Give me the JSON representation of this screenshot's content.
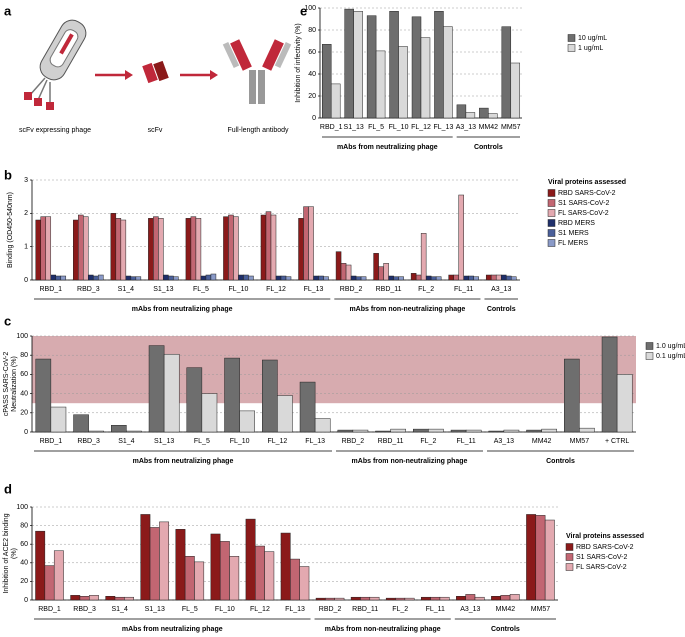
{
  "chart_data": [
    {
      "type": "diagram",
      "panel_label": "a",
      "labels": [
        "scFv expressing phage",
        "scFv",
        "Full-length antibody"
      ]
    },
    {
      "type": "bar",
      "panel_label": "e",
      "y_label": "Inhibition of infectivity (%)",
      "categories": [
        "RBD_1",
        "S1_13",
        "FL_5",
        "FL_10",
        "FL_12",
        "FL_13",
        "A3_13",
        "MM42",
        "MM57"
      ],
      "series": [
        {
          "name": "10 ug/mL",
          "color": "#6e6e6e",
          "values": [
            67,
            99,
            93,
            97,
            92,
            97,
            12,
            9,
            83
          ]
        },
        {
          "name": "1 ug/mL",
          "color": "#d9d9d9",
          "values": [
            31,
            97,
            61,
            65,
            73,
            83,
            5,
            4,
            50
          ]
        }
      ],
      "groups": [
        {
          "label": "mAbs from neutralizing phage",
          "count": 6
        },
        {
          "label": "Controls",
          "count": 3
        }
      ],
      "ylim": [
        0,
        100
      ],
      "yticks": [
        0,
        20,
        40,
        60,
        80,
        100
      ],
      "grid": true
    },
    {
      "type": "bar",
      "panel_label": "b",
      "y_label": "Binding (OD450-540nm)",
      "categories": [
        "RBD_1",
        "RBD_3",
        "S1_4",
        "S1_13",
        "FL_5",
        "FL_10",
        "FL_12",
        "FL_13",
        "RBD_2",
        "RBD_11",
        "FL_2",
        "FL_11",
        "A3_13"
      ],
      "legend_title": "Viral proteins assessed",
      "series": [
        {
          "name": "RBD SARS-CoV-2",
          "color": "#8b1a1a",
          "values": [
            1.8,
            1.8,
            2.0,
            1.85,
            1.85,
            1.9,
            1.95,
            1.85,
            0.85,
            0.8,
            0.2,
            0.15,
            0.15
          ]
        },
        {
          "name": "S1 SARS-CoV-2",
          "color": "#c26672",
          "values": [
            1.9,
            1.95,
            1.85,
            1.9,
            1.9,
            1.95,
            2.05,
            2.2,
            0.5,
            0.4,
            0.15,
            0.15,
            0.15
          ]
        },
        {
          "name": "FL SARS-CoV-2",
          "color": "#e3a9b0",
          "values": [
            1.9,
            1.9,
            1.8,
            1.85,
            1.85,
            1.9,
            1.95,
            2.2,
            0.45,
            0.5,
            1.4,
            2.55,
            0.15
          ]
        },
        {
          "name": "RBD MERS",
          "color": "#1f2f6b",
          "values": [
            0.15,
            0.15,
            0.12,
            0.15,
            0.12,
            0.15,
            0.12,
            0.12,
            0.12,
            0.12,
            0.12,
            0.12,
            0.15
          ]
        },
        {
          "name": "S1 MERS",
          "color": "#4a5f9a",
          "values": [
            0.12,
            0.12,
            0.1,
            0.12,
            0.15,
            0.15,
            0.12,
            0.12,
            0.1,
            0.1,
            0.1,
            0.12,
            0.12
          ]
        },
        {
          "name": "FL MERS",
          "color": "#8a9ac8",
          "values": [
            0.12,
            0.15,
            0.1,
            0.1,
            0.18,
            0.12,
            0.1,
            0.1,
            0.1,
            0.1,
            0.1,
            0.1,
            0.1
          ]
        }
      ],
      "groups": [
        {
          "label": "mAbs from neutralizing phage",
          "count": 8
        },
        {
          "label": "mAbs from non-neutralizing phage",
          "count": 4
        },
        {
          "label": "Controls",
          "count": 1
        }
      ],
      "ylim": [
        0,
        3
      ],
      "yticks": [
        0,
        1,
        2,
        3
      ],
      "grid": true
    },
    {
      "type": "bar",
      "panel_label": "c",
      "y_label": [
        "cPASS SARS-CoV-2",
        "Neutralization (%)"
      ],
      "categories": [
        "RBD_1",
        "RBD_3",
        "S1_4",
        "S1_13",
        "FL_5",
        "FL_10",
        "FL_12",
        "FL_13",
        "RBD_2",
        "RBD_11",
        "FL_2",
        "FL_11",
        "A3_13",
        "MM42",
        "MM57",
        "+ CTRL"
      ],
      "series": [
        {
          "name": "1.0 ug/mL",
          "color": "#6e6e6e",
          "values": [
            76,
            18,
            7,
            90,
            67,
            77,
            75,
            52,
            2,
            1,
            3,
            2,
            1,
            2,
            76,
            99
          ]
        },
        {
          "name": "0.1 ug/mL",
          "color": "#d9d9d9",
          "values": [
            26,
            1,
            1,
            81,
            40,
            22,
            38,
            14,
            2,
            3,
            3,
            2,
            2,
            3,
            4,
            60
          ]
        }
      ],
      "groups": [
        {
          "label": "mAbs from neutralizing phage",
          "count": 8
        },
        {
          "label": "mAbs from non-neutralizing phage",
          "count": 4
        },
        {
          "label": "Controls",
          "count": 4
        }
      ],
      "shaded_range": [
        30,
        100
      ],
      "shaded_color": "#c98f94",
      "ylim": [
        0,
        100
      ],
      "yticks": [
        0,
        20,
        40,
        60,
        80,
        100
      ],
      "grid": true
    },
    {
      "type": "bar",
      "panel_label": "d",
      "y_label": [
        "Inhibition of ACE2 binding",
        "(%)"
      ],
      "categories": [
        "RBD_1",
        "RBD_3",
        "S1_4",
        "S1_13",
        "FL_5",
        "FL_10",
        "FL_12",
        "FL_13",
        "RBD_2",
        "RBD_11",
        "FL_2",
        "FL_11",
        "A3_13",
        "MM42",
        "MM57"
      ],
      "legend_title": "Viral proteins assessed",
      "series": [
        {
          "name": "RBD SARS-CoV-2",
          "color": "#8b1a1a",
          "values": [
            74,
            5,
            4,
            92,
            76,
            71,
            87,
            72,
            2,
            3,
            2,
            3,
            4,
            4,
            92
          ]
        },
        {
          "name": "S1 SARS-CoV-2",
          "color": "#c26672",
          "values": [
            37,
            4,
            3,
            78,
            47,
            63,
            58,
            44,
            2,
            3,
            2,
            3,
            6,
            5,
            91
          ]
        },
        {
          "name": "FL SARS-CoV-2",
          "color": "#e3a9b0",
          "values": [
            53,
            5,
            3,
            84,
            41,
            47,
            52,
            36,
            2,
            3,
            2,
            3,
            3,
            6,
            86
          ]
        }
      ],
      "groups": [
        {
          "label": "mAbs from neutralizing phage",
          "count": 8
        },
        {
          "label": "mAbs from non-neutralizing phage",
          "count": 4
        },
        {
          "label": "Controls",
          "count": 3
        }
      ],
      "ylim": [
        0,
        100
      ],
      "yticks": [
        0,
        20,
        40,
        60,
        80,
        100
      ],
      "grid": true
    }
  ]
}
